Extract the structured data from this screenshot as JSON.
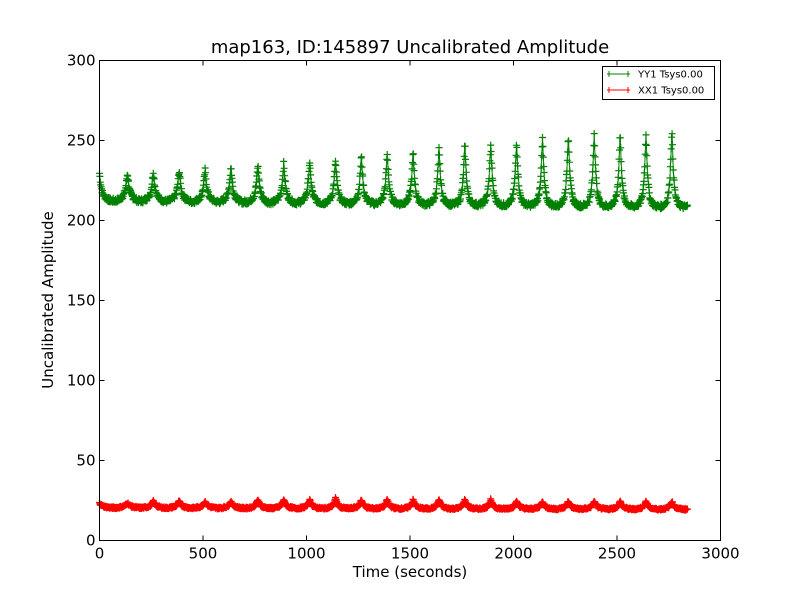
{
  "chart_data": {
    "type": "line",
    "title": "map163, ID:145897 Uncalibrated Amplitude",
    "xlabel": "Time (seconds)",
    "ylabel": "Uncalibrated Amplitude",
    "xlim": [
      0,
      3000
    ],
    "ylim": [
      0,
      300
    ],
    "xticks": [
      0,
      500,
      1000,
      1500,
      2000,
      2500,
      3000
    ],
    "yticks": [
      0,
      50,
      100,
      150,
      200,
      250,
      300
    ],
    "xtick_labels": [
      "0",
      "500",
      "1000",
      "1500",
      "2000",
      "2500",
      "3000"
    ],
    "ytick_labels": [
      "0",
      "50",
      "100",
      "150",
      "200",
      "250",
      "300"
    ],
    "grid": false,
    "legend_position": "top-right",
    "x_end": 2840,
    "peak_times": [
      0,
      135,
      260,
      385,
      510,
      635,
      765,
      890,
      1015,
      1140,
      1265,
      1390,
      1515,
      1640,
      1765,
      1890,
      2015,
      2140,
      2265,
      2390,
      2515,
      2640,
      2765
    ],
    "series": [
      {
        "name": "YY1 Tsys0.00",
        "color": "#008000",
        "marker": "+",
        "baseline": 214,
        "baseline_end": 210,
        "peak_values": [
          228,
          228,
          229,
          230,
          230,
          232,
          233,
          234,
          235,
          236,
          239,
          240,
          241,
          243,
          246,
          246,
          248,
          250,
          252,
          253,
          253,
          253,
          255
        ]
      },
      {
        "name": "XX1 Tsys0.00",
        "color": "#ff0000",
        "marker": "+",
        "baseline": 21,
        "baseline_end": 20,
        "peak_values": [
          23,
          23,
          24,
          24,
          24,
          24,
          25,
          25,
          25,
          26,
          25,
          25,
          25,
          25,
          25,
          25,
          24,
          24,
          24,
          24,
          24,
          24,
          24
        ]
      }
    ]
  }
}
